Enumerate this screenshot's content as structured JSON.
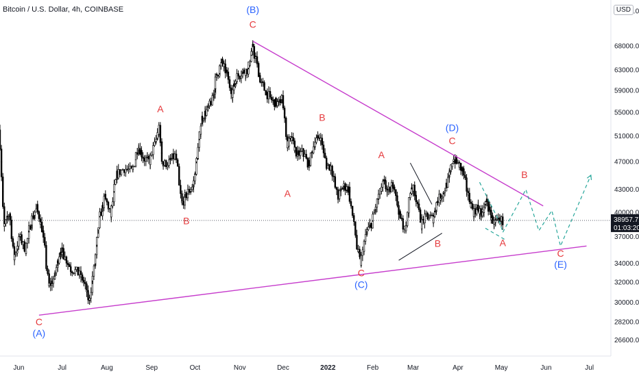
{
  "header": {
    "symbol_title": "Bitcoin / U.S. Dollar, 4h, COINBASE",
    "currency": "USD"
  },
  "colors": {
    "candle": "#000000",
    "trendline": "#c63ccc",
    "label_red": "#e5383b",
    "label_blue": "#2962ff",
    "forecast": "#26a69a",
    "current": "#131722"
  },
  "chart_data": {
    "type": "line",
    "y_ticks": [
      "76000.00",
      "68000.00",
      "63000.00",
      "59000.00",
      "55000.00",
      "51000.00",
      "47000.00",
      "43000.00",
      "40000.00",
      "37000.00",
      "34000.00",
      "32000.00",
      "30000.00",
      "28200.00",
      "26600.00"
    ],
    "x_ticks": [
      "Jun",
      "Jul",
      "Aug",
      "Sep",
      "Oct",
      "Nov",
      "Dec",
      "2022",
      "Feb",
      "Mar",
      "Apr",
      "May",
      "Jun",
      "Jul"
    ],
    "x_ticks_bold": [
      "2022"
    ],
    "y_scale": "log",
    "y_range": [
      25500,
      78000
    ],
    "x_domain": [
      "2021-05-19",
      "2022-07-04"
    ],
    "series": [
      {
        "values": [
          [
            "2021-05-19",
            52000
          ],
          [
            "2021-05-22",
            38000
          ],
          [
            "2021-05-26",
            40000
          ],
          [
            "2021-05-29",
            34500
          ],
          [
            "2021-06-02",
            37000
          ],
          [
            "2021-06-06",
            35500
          ],
          [
            "2021-06-10",
            39000
          ],
          [
            "2021-06-14",
            40500
          ],
          [
            "2021-06-18",
            37500
          ],
          [
            "2021-06-22",
            31500
          ],
          [
            "2021-06-26",
            32500
          ],
          [
            "2021-06-30",
            35500
          ],
          [
            "2021-07-03",
            34800
          ],
          [
            "2021-07-07",
            33500
          ],
          [
            "2021-07-12",
            33000
          ],
          [
            "2021-07-16",
            32200
          ],
          [
            "2021-07-20",
            30000
          ],
          [
            "2021-07-24",
            34000
          ],
          [
            "2021-07-27",
            39000
          ],
          [
            "2021-07-31",
            42000
          ],
          [
            "2021-08-04",
            39500
          ],
          [
            "2021-08-08",
            45000
          ],
          [
            "2021-08-13",
            46000
          ],
          [
            "2021-08-19",
            45500
          ],
          [
            "2021-08-23",
            49500
          ],
          [
            "2021-08-27",
            47500
          ],
          [
            "2021-08-31",
            47000
          ],
          [
            "2021-09-04",
            50000
          ],
          [
            "2021-09-07",
            52500
          ],
          [
            "2021-09-09",
            46500
          ],
          [
            "2021-09-14",
            47000
          ],
          [
            "2021-09-18",
            48000
          ],
          [
            "2021-09-22",
            41000
          ],
          [
            "2021-09-26",
            42500
          ],
          [
            "2021-09-30",
            43500
          ],
          [
            "2021-10-03",
            48000
          ],
          [
            "2021-10-06",
            54000
          ],
          [
            "2021-10-10",
            55500
          ],
          [
            "2021-10-14",
            57500
          ],
          [
            "2021-10-16",
            61500
          ],
          [
            "2021-10-20",
            64500
          ],
          [
            "2021-10-23",
            62500
          ],
          [
            "2021-10-27",
            58500
          ],
          [
            "2021-10-30",
            61500
          ],
          [
            "2021-11-03",
            62500
          ],
          [
            "2021-11-07",
            63000
          ],
          [
            "2021-11-10",
            67500
          ],
          [
            "2021-11-13",
            64500
          ],
          [
            "2021-11-16",
            60500
          ],
          [
            "2021-11-20",
            58500
          ],
          [
            "2021-11-24",
            57000
          ],
          [
            "2021-11-28",
            56500
          ],
          [
            "2021-12-01",
            57500
          ],
          [
            "2021-12-04",
            49500
          ],
          [
            "2021-12-07",
            50500
          ],
          [
            "2021-12-11",
            48000
          ],
          [
            "2021-12-15",
            48500
          ],
          [
            "2021-12-19",
            46500
          ],
          [
            "2021-12-23",
            50000
          ],
          [
            "2021-12-27",
            51000
          ],
          [
            "2021-12-31",
            46500
          ],
          [
            "2022-01-04",
            46200
          ],
          [
            "2022-01-08",
            41800
          ],
          [
            "2022-01-12",
            43500
          ],
          [
            "2022-01-16",
            43000
          ],
          [
            "2022-01-21",
            36000
          ],
          [
            "2022-01-24",
            34000
          ],
          [
            "2022-01-28",
            37500
          ],
          [
            "2022-02-01",
            38800
          ],
          [
            "2022-02-05",
            41800
          ],
          [
            "2022-02-09",
            44000
          ],
          [
            "2022-02-12",
            42500
          ],
          [
            "2022-02-16",
            44000
          ],
          [
            "2022-02-20",
            39500
          ],
          [
            "2022-02-24",
            37500
          ],
          [
            "2022-02-28",
            43500
          ],
          [
            "2022-03-03",
            42500
          ],
          [
            "2022-03-07",
            38500
          ],
          [
            "2022-03-11",
            39500
          ],
          [
            "2022-03-15",
            39200
          ],
          [
            "2022-03-18",
            41500
          ],
          [
            "2022-03-22",
            42500
          ],
          [
            "2022-03-26",
            44500
          ],
          [
            "2022-03-29",
            47500
          ],
          [
            "2022-04-02",
            46500
          ],
          [
            "2022-04-05",
            45500
          ],
          [
            "2022-04-08",
            42500
          ],
          [
            "2022-04-12",
            40000
          ],
          [
            "2022-04-15",
            40500
          ],
          [
            "2022-04-18",
            39500
          ],
          [
            "2022-04-21",
            41500
          ],
          [
            "2022-04-24",
            39500
          ],
          [
            "2022-04-27",
            38500
          ],
          [
            "2022-04-30",
            38800
          ],
          [
            "2022-05-02",
            38900
          ]
        ]
      }
    ],
    "trendlines": [
      {
        "points": [
          [
            "2021-06-15",
            28800
          ],
          [
            "2022-06-29",
            35900
          ]
        ]
      },
      {
        "points": [
          [
            "2021-11-10",
            69000
          ],
          [
            "2022-05-30",
            40800
          ]
        ]
      },
      {
        "points": [
          [
            "2022-02-19",
            34300
          ],
          [
            "2022-03-21",
            37400
          ]
        ]
      },
      {
        "points": [
          [
            "2022-02-27",
            46800
          ],
          [
            "2022-03-14",
            41000
          ]
        ]
      }
    ],
    "forecast_path": [
      [
        "2022-04-16",
        44000
      ],
      [
        "2022-04-30",
        38700
      ],
      [
        "2022-05-02",
        37500
      ],
      [
        "2022-05-18",
        43000
      ],
      [
        "2022-05-27",
        37700
      ],
      [
        "2022-06-05",
        40200
      ],
      [
        "2022-06-11",
        35900
      ],
      [
        "2022-07-02",
        45000
      ]
    ],
    "forecast_support": [
      [
        "2022-04-20",
        38000
      ],
      [
        "2022-05-04",
        36600
      ]
    ],
    "current_price": {
      "value": 38957.71,
      "label": "38957.71",
      "countdown": "01:03:20"
    },
    "wave_labels": [
      {
        "text": "C",
        "x": "2021-06-15",
        "y": 27900,
        "color": "red"
      },
      {
        "text": "(A)",
        "x": "2021-06-15",
        "y": 26900,
        "color": "blue"
      },
      {
        "text": "A",
        "x": "2021-09-07",
        "y": 55000,
        "color": "red"
      },
      {
        "text": "B",
        "x": "2021-09-25",
        "y": 38500,
        "color": "red"
      },
      {
        "text": "(B)",
        "x": "2021-11-10",
        "y": 75500,
        "color": "blue"
      },
      {
        "text": "C",
        "x": "2021-11-10",
        "y": 72000,
        "color": "red"
      },
      {
        "text": "A",
        "x": "2021-12-04",
        "y": 42000,
        "color": "red"
      },
      {
        "text": "B",
        "x": "2021-12-28",
        "y": 53500,
        "color": "red"
      },
      {
        "text": "C",
        "x": "2022-01-24",
        "y": 32600,
        "color": "red"
      },
      {
        "text": "(C)",
        "x": "2022-01-24",
        "y": 31400,
        "color": "blue"
      },
      {
        "text": "A",
        "x": "2022-02-07",
        "y": 47500,
        "color": "red"
      },
      {
        "text": "B",
        "x": "2022-03-18",
        "y": 35800,
        "color": "red"
      },
      {
        "text": "(D)",
        "x": "2022-03-28",
        "y": 51800,
        "color": "blue"
      },
      {
        "text": "C",
        "x": "2022-03-28",
        "y": 49700,
        "color": "red"
      },
      {
        "text": "A",
        "x": "2022-05-02",
        "y": 35900,
        "color": "red"
      },
      {
        "text": "B",
        "x": "2022-05-17",
        "y": 44600,
        "color": "red"
      },
      {
        "text": "C",
        "x": "2022-06-11",
        "y": 34700,
        "color": "red"
      },
      {
        "text": "(E)",
        "x": "2022-06-11",
        "y": 33500,
        "color": "blue"
      }
    ]
  }
}
